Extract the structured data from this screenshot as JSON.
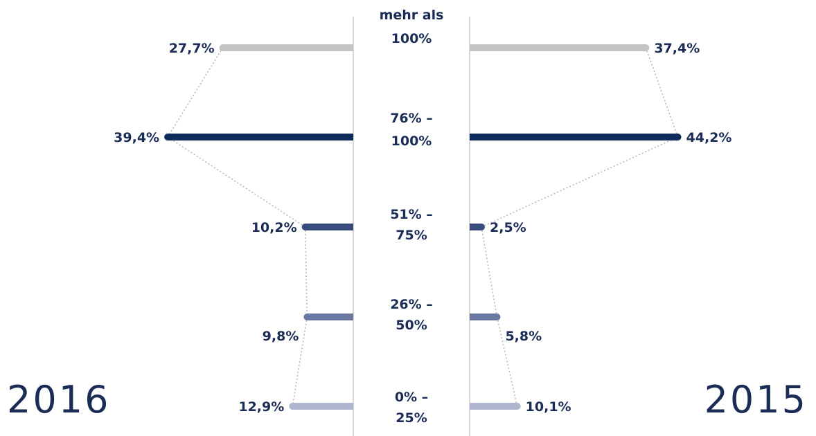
{
  "chart_data": {
    "type": "bar",
    "orientation": "horizontal-butterfly",
    "categories": [
      [
        "mehr als",
        "100%"
      ],
      [
        "76% –",
        "100%"
      ],
      [
        "51% –",
        "75%"
      ],
      [
        "26% –",
        "50%"
      ],
      [
        "0% –",
        "25%"
      ]
    ],
    "series": [
      {
        "name": "2016",
        "side": "left",
        "values": [
          27.7,
          39.4,
          10.2,
          9.8,
          12.9
        ],
        "labels": [
          "27,7%",
          "39,4%",
          "10,2%",
          "9,8%",
          "12,9%"
        ]
      },
      {
        "name": "2015",
        "side": "right",
        "values": [
          37.4,
          44.2,
          2.5,
          5.8,
          10.1
        ],
        "labels": [
          "37,4%",
          "44,2%",
          "2,5%",
          "5,8%",
          "10,1%"
        ]
      }
    ],
    "colors": [
      "#c4c4c4",
      "#0f2b5b",
      "#394d7d",
      "#6b78a2",
      "#b0b6d0"
    ],
    "connector_color": "#b8b8b8",
    "divider_color": "#c8c8c8",
    "text_color": "#1b2d57",
    "value_max": 50
  }
}
